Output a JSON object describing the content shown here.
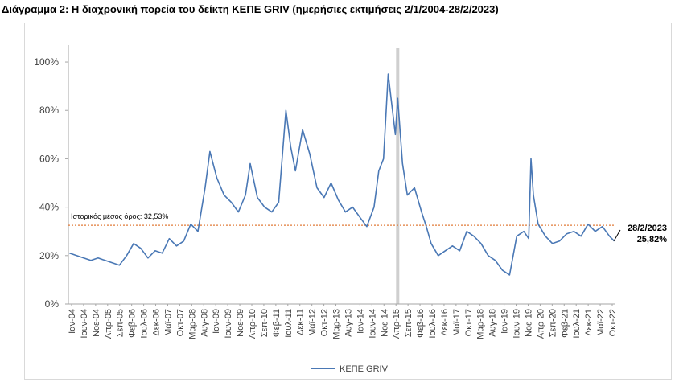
{
  "title": "Διάγραμμα 2: Η διαχρονική πορεία του δείκτη ΚΕΠΕ GRIV (ημερήσιες εκτιμήσεις 2/1/2004-28/2/2023)",
  "colors": {
    "series": "#4a78b5",
    "mean_line": "#e07b39",
    "vband": "#cfcfcf",
    "grid": "#d9d9d9"
  },
  "chart_data": {
    "type": "line",
    "title": "",
    "xlabel": "",
    "ylabel": "",
    "ylim": [
      0,
      1.05
    ],
    "grid": false,
    "legend_position": "bottom",
    "y_ticks": [
      {
        "value": 0.0,
        "label": "0%"
      },
      {
        "value": 0.2,
        "label": "20%"
      },
      {
        "value": 0.4,
        "label": "40%"
      },
      {
        "value": 0.6,
        "label": "60%"
      },
      {
        "value": 0.8,
        "label": "80%"
      },
      {
        "value": 1.0,
        "label": "100%"
      }
    ],
    "x_tick_labels": [
      "Ιαν-04",
      "Ιουν-04",
      "Νοε-04",
      "Απρ-05",
      "Σεπ-05",
      "Φεβ-06",
      "Ιουλ-06",
      "Δεκ-06",
      "Μαϊ-07",
      "Οκτ-07",
      "Μαρ-08",
      "Αυγ-08",
      "Ιαν-09",
      "Ιουν-09",
      "Νοε-09",
      "Απρ-10",
      "Σεπ-10",
      "Φεβ-11",
      "Ιουλ-11",
      "Δεκ-11",
      "Μαϊ-12",
      "Οκτ-12",
      "Μαρ-13",
      "Αυγ-13",
      "Ιαν-14",
      "Ιουν-14",
      "Νοε-14",
      "Απρ-15",
      "Σεπ-15",
      "Φεβ-16",
      "Ιουλ-16",
      "Δεκ-16",
      "Μαϊ-17",
      "Οκτ-17",
      "Μαρ-18",
      "Αυγ-18",
      "Ιαν-19",
      "Ιουν-19",
      "Νοε-19",
      "Απρ-20",
      "Σεπ-20",
      "Φεβ-21",
      "Ιουλ-21",
      "Δεκ-21",
      "Μαϊ-22",
      "Οκτ-22"
    ],
    "series": [
      {
        "name": "ΚΕΠΕ GRIV",
        "x": [
          "2004-01",
          "2004-04",
          "2004-07",
          "2004-10",
          "2005-01",
          "2005-04",
          "2005-07",
          "2005-10",
          "2006-01",
          "2006-04",
          "2006-07",
          "2006-10",
          "2007-01",
          "2007-04",
          "2007-07",
          "2007-10",
          "2008-01",
          "2008-04",
          "2008-07",
          "2008-10",
          "2008-12",
          "2009-03",
          "2009-06",
          "2009-09",
          "2009-12",
          "2010-03",
          "2010-05",
          "2010-08",
          "2010-11",
          "2011-02",
          "2011-05",
          "2011-08",
          "2011-10",
          "2011-12",
          "2012-03",
          "2012-06",
          "2012-09",
          "2012-12",
          "2013-03",
          "2013-06",
          "2013-09",
          "2013-12",
          "2014-03",
          "2014-06",
          "2014-09",
          "2014-11",
          "2015-01",
          "2015-03",
          "2015-06",
          "2015-07",
          "2015-09",
          "2015-11",
          "2016-02",
          "2016-05",
          "2016-07",
          "2016-09",
          "2016-12",
          "2017-03",
          "2017-06",
          "2017-09",
          "2017-12",
          "2018-03",
          "2018-06",
          "2018-09",
          "2018-12",
          "2019-03",
          "2019-06",
          "2019-09",
          "2019-12",
          "2020-02",
          "2020-03",
          "2020-04",
          "2020-06",
          "2020-09",
          "2020-12",
          "2021-03",
          "2021-06",
          "2021-09",
          "2021-12",
          "2022-03",
          "2022-06",
          "2022-09",
          "2022-12",
          "2023-02"
        ],
        "values": [
          0.21,
          0.2,
          0.19,
          0.18,
          0.19,
          0.18,
          0.17,
          0.16,
          0.2,
          0.25,
          0.23,
          0.19,
          0.22,
          0.21,
          0.27,
          0.24,
          0.26,
          0.33,
          0.3,
          0.48,
          0.63,
          0.52,
          0.45,
          0.42,
          0.38,
          0.45,
          0.58,
          0.44,
          0.4,
          0.38,
          0.42,
          0.8,
          0.65,
          0.55,
          0.72,
          0.62,
          0.48,
          0.44,
          0.5,
          0.43,
          0.38,
          0.4,
          0.36,
          0.32,
          0.4,
          0.55,
          0.6,
          0.95,
          0.7,
          0.85,
          0.58,
          0.45,
          0.48,
          0.38,
          0.32,
          0.25,
          0.2,
          0.22,
          0.24,
          0.22,
          0.3,
          0.28,
          0.25,
          0.2,
          0.18,
          0.14,
          0.12,
          0.28,
          0.3,
          0.27,
          0.6,
          0.45,
          0.33,
          0.28,
          0.25,
          0.26,
          0.29,
          0.3,
          0.28,
          0.33,
          0.3,
          0.32,
          0.28,
          0.26
        ]
      }
    ],
    "reference_line": {
      "value": 0.3253,
      "label": "Ιστορικός μέσος όρος: 32,53%"
    },
    "highlight_date": "2015-07",
    "end_annotation": {
      "date_label": "28/2/2023",
      "value_label": "25,82%"
    }
  }
}
